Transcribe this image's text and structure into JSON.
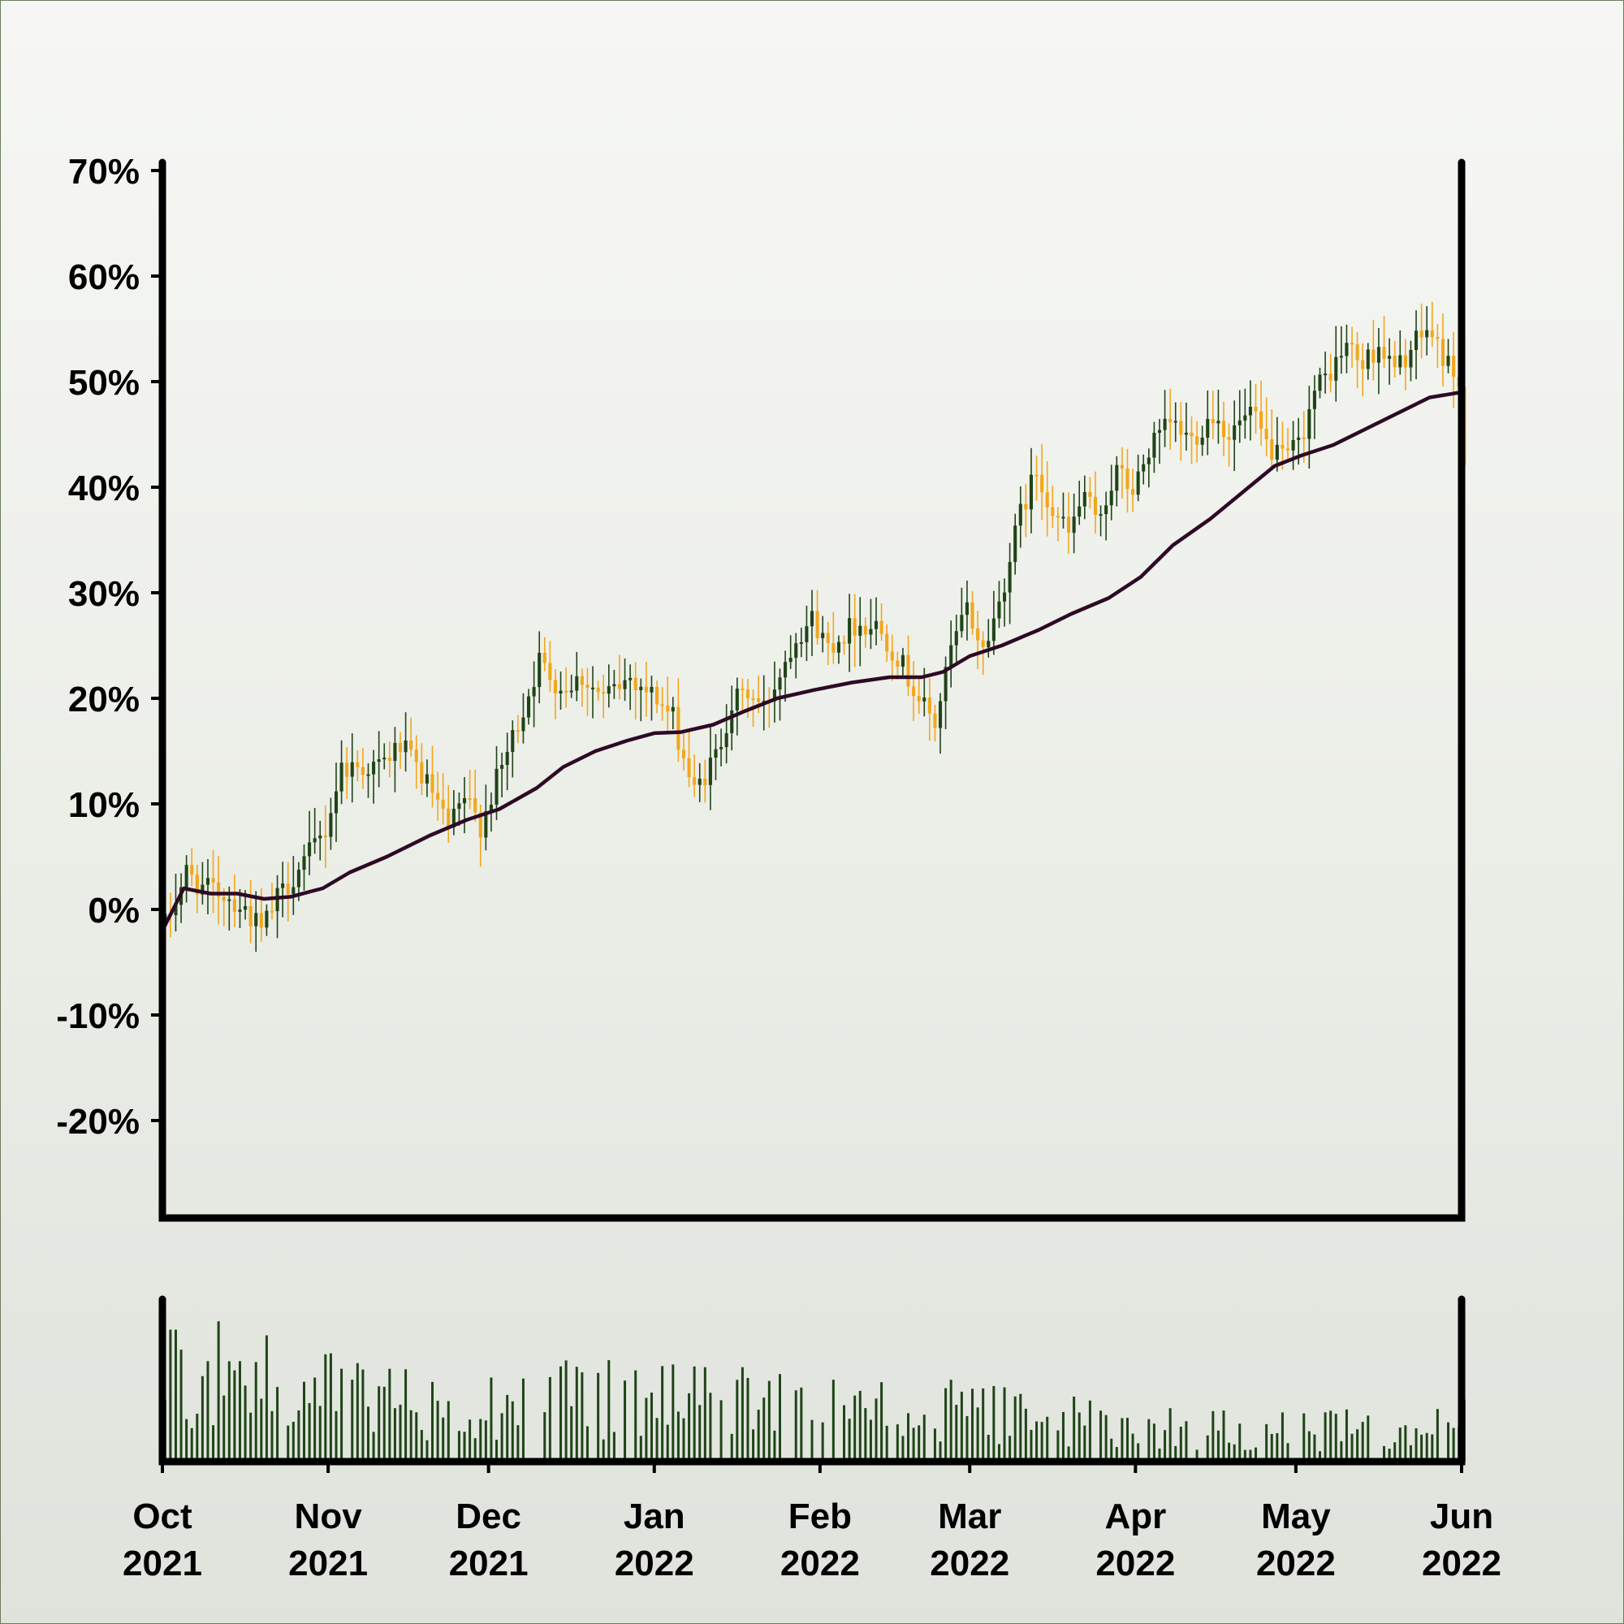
{
  "chart_data": {
    "type": "candlestick",
    "title": "",
    "xlabel": "",
    "ylabel": "",
    "ylim": [
      -29,
      70
    ],
    "yticks": [
      "70%",
      "60%",
      "50%",
      "40%",
      "30%",
      "20%",
      "10%",
      "0%",
      "-10%",
      "-20%"
    ],
    "ytick_values": [
      70,
      60,
      50,
      40,
      30,
      20,
      10,
      0,
      -10,
      -20
    ],
    "xlim": [
      "2021-10-01",
      "2022-06-01"
    ],
    "xticks": [
      {
        "month": "Oct",
        "year": "2021",
        "date": "2021-10-01"
      },
      {
        "month": "Nov",
        "year": "2021",
        "date": "2021-11-01"
      },
      {
        "month": "Dec",
        "year": "2021",
        "date": "2021-12-01"
      },
      {
        "month": "Jan",
        "year": "2022",
        "date": "2022-01-01"
      },
      {
        "month": "Feb",
        "year": "2022",
        "date": "2022-02-01"
      },
      {
        "month": "Mar",
        "year": "2022",
        "date": "2022-03-01"
      },
      {
        "month": "Apr",
        "year": "2022",
        "date": "2022-04-01"
      },
      {
        "month": "May",
        "year": "2022",
        "date": "2022-05-01"
      },
      {
        "month": "Jun",
        "year": "2022",
        "date": "2022-06-01"
      }
    ],
    "close_path": [
      [
        "2021-10-01",
        -1.5
      ],
      [
        "2021-10-05",
        3.5
      ],
      [
        "2021-10-08",
        2
      ],
      [
        "2021-10-12",
        1.5
      ],
      [
        "2021-10-16",
        0
      ],
      [
        "2021-10-19",
        -2
      ],
      [
        "2021-10-22",
        1
      ],
      [
        "2021-10-27",
        4.5
      ],
      [
        "2021-10-31",
        7.5
      ],
      [
        "2021-11-03",
        13.5
      ],
      [
        "2021-11-10",
        13.5
      ],
      [
        "2021-11-14",
        15.5
      ],
      [
        "2021-11-17",
        13.5
      ],
      [
        "2021-11-20",
        11
      ],
      [
        "2021-11-23",
        7.5
      ],
      [
        "2021-11-26",
        10.5
      ],
      [
        "2021-11-29",
        8
      ],
      [
        "2021-12-03",
        13.5
      ],
      [
        "2021-12-07",
        19
      ],
      [
        "2021-12-10",
        23.5
      ],
      [
        "2021-12-14",
        21
      ],
      [
        "2021-12-18",
        22
      ],
      [
        "2021-12-22",
        20
      ],
      [
        "2021-12-27",
        22
      ],
      [
        "2022-01-01",
        20
      ],
      [
        "2022-01-04",
        18
      ],
      [
        "2022-01-08",
        11
      ],
      [
        "2022-01-12",
        14.5
      ],
      [
        "2022-01-15",
        19.5
      ],
      [
        "2022-01-18",
        20.5
      ],
      [
        "2022-01-21",
        19
      ],
      [
        "2022-01-24",
        22.5
      ],
      [
        "2022-01-27",
        26
      ],
      [
        "2022-01-30",
        27.5
      ],
      [
        "2022-02-02",
        25
      ],
      [
        "2022-02-07",
        27
      ],
      [
        "2022-02-11",
        27
      ],
      [
        "2022-02-15",
        24
      ],
      [
        "2022-02-19",
        20
      ],
      [
        "2022-02-22",
        17.5
      ],
      [
        "2022-02-25",
        24.5
      ],
      [
        "2022-02-28",
        28.5
      ],
      [
        "2022-03-03",
        24.5
      ],
      [
        "2022-03-06",
        29
      ],
      [
        "2022-03-10",
        37.5
      ],
      [
        "2022-03-13",
        41.5
      ],
      [
        "2022-03-16",
        38
      ],
      [
        "2022-03-19",
        35.5
      ],
      [
        "2022-03-22",
        39.5
      ],
      [
        "2022-03-24",
        36.5
      ],
      [
        "2022-03-28",
        41.5
      ],
      [
        "2022-03-31",
        39.5
      ],
      [
        "2022-04-03",
        43.5
      ],
      [
        "2022-04-07",
        46
      ],
      [
        "2022-04-11",
        44.5
      ],
      [
        "2022-04-15",
        47
      ],
      [
        "2022-04-18",
        45
      ],
      [
        "2022-04-22",
        47
      ],
      [
        "2022-04-25",
        44
      ],
      [
        "2022-04-28",
        42.5
      ],
      [
        "2022-05-01",
        44
      ],
      [
        "2022-05-04",
        49
      ],
      [
        "2022-05-07",
        51
      ],
      [
        "2022-05-10",
        53.5
      ],
      [
        "2022-05-13",
        51.5
      ],
      [
        "2022-05-16",
        53.5
      ],
      [
        "2022-05-19",
        51
      ],
      [
        "2022-05-22",
        53
      ],
      [
        "2022-05-25",
        55
      ],
      [
        "2022-05-28",
        52.5
      ],
      [
        "2022-05-31",
        50
      ],
      [
        "2022-06-01",
        42
      ]
    ],
    "moving_average": [
      [
        "2021-10-01",
        -2
      ],
      [
        "2021-10-05",
        2
      ],
      [
        "2021-10-10",
        1.5
      ],
      [
        "2021-10-15",
        1.5
      ],
      [
        "2021-10-20",
        1
      ],
      [
        "2021-10-25",
        1.2
      ],
      [
        "2021-10-31",
        2
      ],
      [
        "2021-11-05",
        3.5
      ],
      [
        "2021-11-12",
        5
      ],
      [
        "2021-11-20",
        7
      ],
      [
        "2021-11-27",
        8.5
      ],
      [
        "2021-12-03",
        9.5
      ],
      [
        "2021-12-10",
        11.5
      ],
      [
        "2021-12-15",
        13.5
      ],
      [
        "2021-12-21",
        15
      ],
      [
        "2021-12-27",
        16
      ],
      [
        "2022-01-01",
        16.7
      ],
      [
        "2022-01-06",
        16.8
      ],
      [
        "2022-01-12",
        17.5
      ],
      [
        "2022-01-18",
        18.8
      ],
      [
        "2022-01-24",
        20
      ],
      [
        "2022-01-31",
        20.8
      ],
      [
        "2022-02-07",
        21.5
      ],
      [
        "2022-02-14",
        22
      ],
      [
        "2022-02-20",
        22
      ],
      [
        "2022-02-24",
        22.5
      ],
      [
        "2022-03-01",
        24
      ],
      [
        "2022-03-07",
        25
      ],
      [
        "2022-03-14",
        26.5
      ],
      [
        "2022-03-20",
        28
      ],
      [
        "2022-03-27",
        29.5
      ],
      [
        "2022-04-02",
        31.5
      ],
      [
        "2022-04-08",
        34.5
      ],
      [
        "2022-04-15",
        37
      ],
      [
        "2022-04-21",
        39.5
      ],
      [
        "2022-04-27",
        42
      ],
      [
        "2022-05-02",
        43
      ],
      [
        "2022-05-08",
        44
      ],
      [
        "2022-05-14",
        45.5
      ],
      [
        "2022-05-20",
        47
      ],
      [
        "2022-05-26",
        48.5
      ],
      [
        "2022-06-01",
        49
      ]
    ],
    "volume_note": "daily volume bars, heights relative (0-1)",
    "volume_profile": [
      [
        "2021-10-01",
        0.85
      ],
      [
        "2021-10-31",
        0.55
      ],
      [
        "2021-11-30",
        0.5
      ],
      [
        "2021-12-31",
        0.5
      ],
      [
        "2022-01-31",
        0.45
      ],
      [
        "2022-02-28",
        0.4
      ],
      [
        "2022-03-31",
        0.3
      ],
      [
        "2022-04-30",
        0.25
      ],
      [
        "2022-05-31",
        0.28
      ],
      [
        "2022-06-01",
        0.45
      ]
    ],
    "colors": {
      "up": "#1f4417",
      "down": "#f2a71c",
      "moving_average": "#2e0a25",
      "volume": "#1f4417",
      "axes": "#000000"
    }
  }
}
